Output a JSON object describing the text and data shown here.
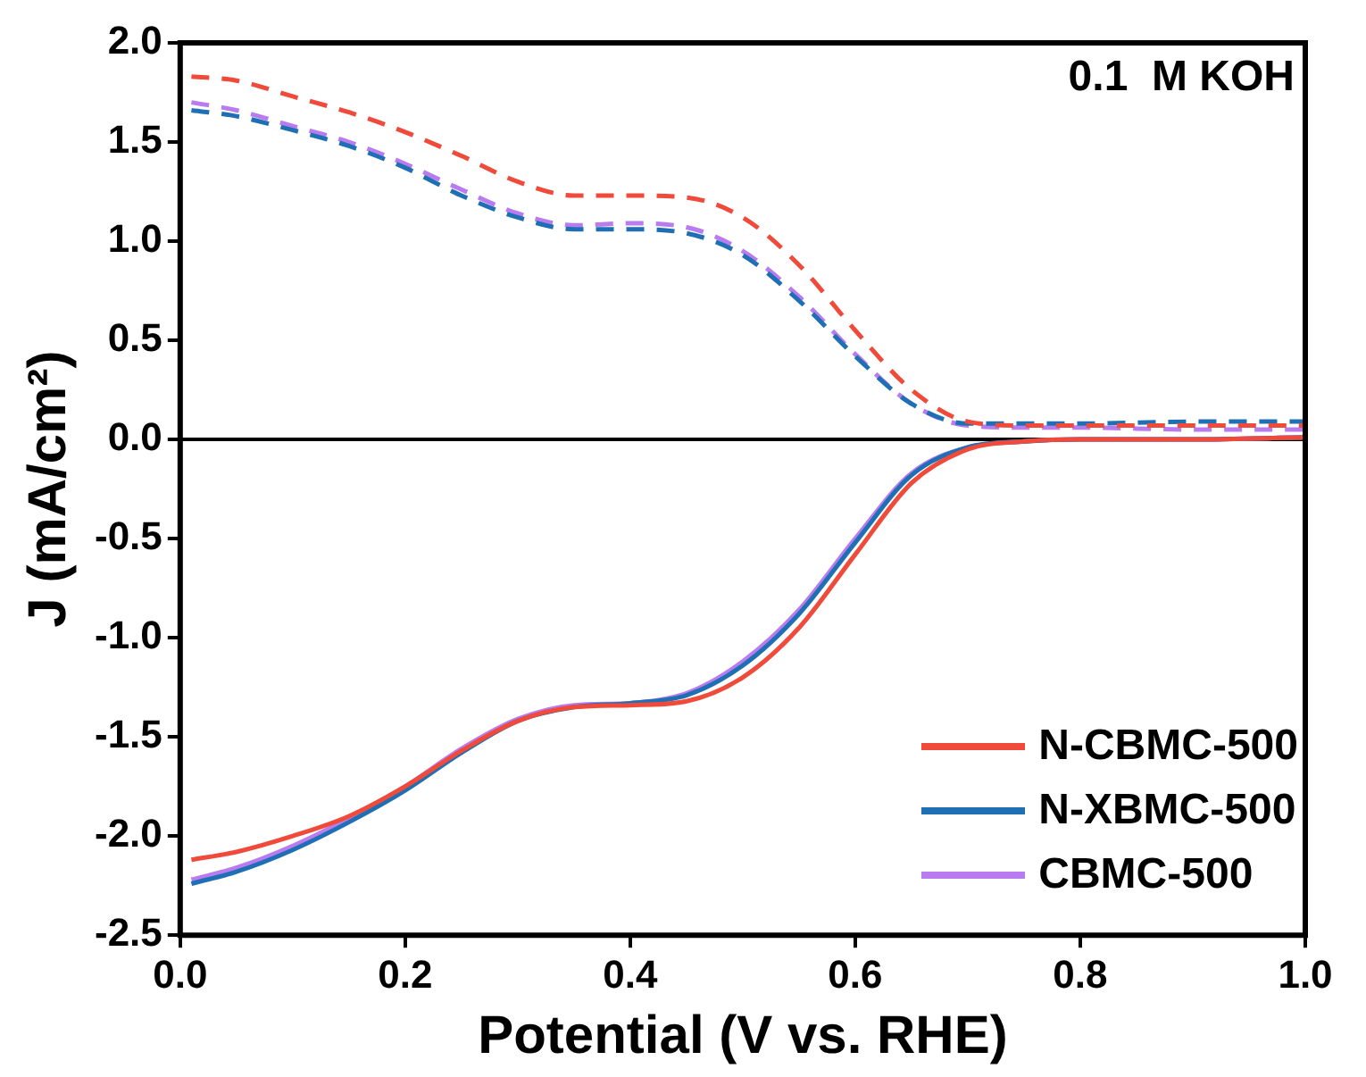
{
  "chart_data": {
    "type": "line",
    "xlabel": "Potential (V vs. RHE)",
    "ylabel": "J (mA/cm²)",
    "xlim": [
      0,
      1.0
    ],
    "xticks": [
      {
        "value": 0,
        "label": "0.0"
      },
      0.2,
      0.4,
      0.6,
      0.8,
      {
        "value": 1,
        "label": "1.0"
      }
    ],
    "ylim": [
      -2.5,
      2.0
    ],
    "yticks": [
      -2.5,
      {
        "value": -2,
        "label": "-2.0"
      },
      -1.5,
      {
        "value": -1,
        "label": "-1.0"
      },
      -0.5,
      {
        "value": 0,
        "label": "0.0"
      },
      0.5,
      {
        "value": 1,
        "label": "1.0"
      },
      1.5,
      {
        "value": 2,
        "label": "2.0"
      }
    ],
    "legend": "bottom right",
    "marker": "none",
    "annotations": [
      "0.1  M KOH"
    ],
    "ref_lines": [
      {
        "axis": "y",
        "value": 0,
        "color": "#000000"
      }
    ],
    "x": [
      0.01,
      0.05,
      0.1,
      0.15,
      0.2,
      0.25,
      0.3,
      0.35,
      0.4,
      0.45,
      0.5,
      0.55,
      0.6,
      0.65,
      0.7,
      0.75,
      0.8,
      0.9,
      1.0
    ],
    "series": [
      {
        "name": "N-CBMC-500",
        "color": "#f04a3a",
        "line_style": "solid",
        "values": [
          -2.12,
          -2.08,
          -2.0,
          -1.9,
          -1.75,
          -1.57,
          -1.42,
          -1.35,
          -1.34,
          -1.32,
          -1.2,
          -0.95,
          -0.58,
          -0.22,
          -0.05,
          -0.01,
          0,
          0,
          0.01
        ]
      },
      {
        "name": "N-XBMC-500",
        "color": "#1f6fb4",
        "line_style": "solid",
        "values": [
          -2.24,
          -2.18,
          -2.07,
          -1.93,
          -1.77,
          -1.58,
          -1.42,
          -1.35,
          -1.33,
          -1.29,
          -1.14,
          -0.88,
          -0.52,
          -0.18,
          -0.04,
          -0.01,
          0,
          0,
          0.01
        ]
      },
      {
        "name": "CBMC-500",
        "color": "#b87cf0",
        "line_style": "solid",
        "values": [
          -2.22,
          -2.16,
          -2.05,
          -1.91,
          -1.75,
          -1.56,
          -1.41,
          -1.34,
          -1.33,
          -1.28,
          -1.12,
          -0.86,
          -0.5,
          -0.17,
          -0.04,
          -0.01,
          0,
          0,
          0.01
        ]
      },
      {
        "color": "#f04a3a",
        "line_style": "dashed",
        "values": [
          1.83,
          1.81,
          1.73,
          1.65,
          1.55,
          1.43,
          1.3,
          1.23,
          1.23,
          1.22,
          1.12,
          0.88,
          0.55,
          0.25,
          0.09,
          0.07,
          0.07,
          0.07,
          0.07
        ]
      },
      {
        "color": "#1f6fb4",
        "line_style": "dashed",
        "values": [
          1.66,
          1.63,
          1.56,
          1.48,
          1.37,
          1.23,
          1.12,
          1.06,
          1.06,
          1.04,
          0.93,
          0.7,
          0.42,
          0.18,
          0.08,
          0.08,
          0.08,
          0.09,
          0.09
        ]
      },
      {
        "color": "#b87cf0",
        "line_style": "dashed",
        "values": [
          1.7,
          1.66,
          1.58,
          1.5,
          1.39,
          1.26,
          1.14,
          1.08,
          1.09,
          1.07,
          0.95,
          0.72,
          0.43,
          0.18,
          0.07,
          0.06,
          0.06,
          0.05,
          0.05
        ]
      }
    ]
  }
}
